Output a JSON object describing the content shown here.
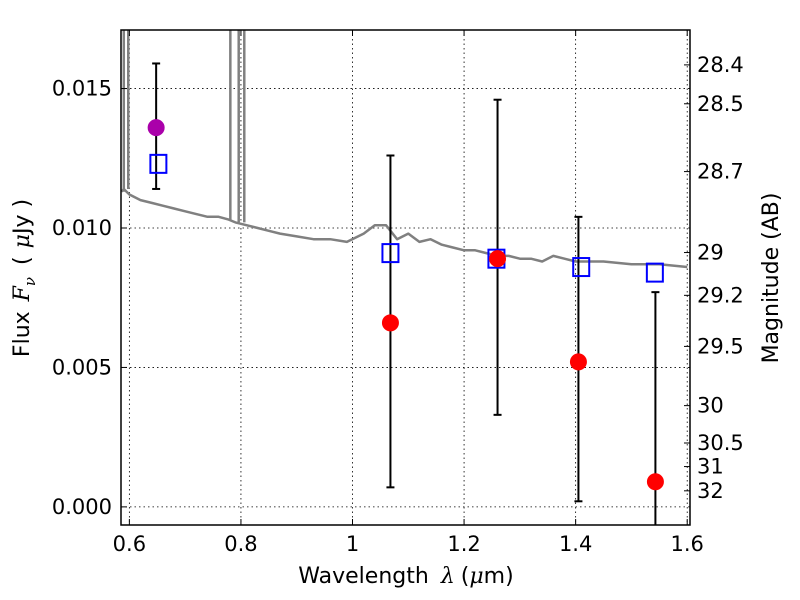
{
  "chart_data": {
    "type": "scatter",
    "x_label": {
      "prefix": "Wavelength",
      "symbol": "λ",
      "unit_open": "(",
      "unit_symbol": "μ",
      "unit_rest": "m)"
    },
    "y_label": {
      "prefix": "Flux",
      "symbol": "F",
      "subscript": "ν",
      "unit_open": "(",
      "unit_symbol": "μ",
      "unit_rest": "Jy )"
    },
    "y2_label": "Magnitude (AB)",
    "xlim": [
      0.585,
      1.605
    ],
    "ylim": [
      -0.00065,
      0.0171
    ],
    "x_ticks": [
      {
        "value": 0.6,
        "label": "0.6"
      },
      {
        "value": 0.8,
        "label": "0.8"
      },
      {
        "value": 1.0,
        "label": "1"
      },
      {
        "value": 1.2,
        "label": "1.2"
      },
      {
        "value": 1.4,
        "label": "1.4"
      },
      {
        "value": 1.6,
        "label": "1.6"
      }
    ],
    "y_ticks": [
      {
        "value": 0.0,
        "label": "0.000"
      },
      {
        "value": 0.005,
        "label": "0.005"
      },
      {
        "value": 0.01,
        "label": "0.010"
      },
      {
        "value": 0.015,
        "label": "0.015"
      }
    ],
    "mag_ticks": [
      {
        "value": 28.4,
        "label": "28.4"
      },
      {
        "value": 28.5,
        "label": "28.5"
      },
      {
        "value": 28.7,
        "label": "28.7"
      },
      {
        "value": 29,
        "label": "29"
      },
      {
        "value": 29.2,
        "label": "29.2"
      },
      {
        "value": 29.5,
        "label": "29.5"
      },
      {
        "value": 30,
        "label": "30"
      },
      {
        "value": 30.5,
        "label": "30.5"
      },
      {
        "value": 31,
        "label": "31"
      },
      {
        "value": 32,
        "label": "32"
      }
    ],
    "grid": true,
    "series": [
      {
        "kind": "line",
        "color": "#808080",
        "x": [
          0.586,
          0.59,
          0.6,
          0.62,
          0.64,
          0.66,
          0.68,
          0.7,
          0.72,
          0.74,
          0.76,
          0.778,
          0.79,
          0.81,
          0.83,
          0.85,
          0.87,
          0.9,
          0.93,
          0.96,
          0.99,
          1.02,
          1.04,
          1.06,
          1.08,
          1.1,
          1.12,
          1.14,
          1.16,
          1.18,
          1.2,
          1.22,
          1.24,
          1.26,
          1.28,
          1.3,
          1.32,
          1.34,
          1.36,
          1.38,
          1.4,
          1.45,
          1.5,
          1.55,
          1.6
        ],
        "y": [
          0.0113,
          0.0114,
          0.0112,
          0.011,
          0.0109,
          0.0108,
          0.0107,
          0.0106,
          0.0105,
          0.0104,
          0.0104,
          0.0103,
          0.0102,
          0.0101,
          0.01,
          0.0099,
          0.0098,
          0.0097,
          0.0096,
          0.0096,
          0.0095,
          0.0098,
          0.0101,
          0.0101,
          0.0096,
          0.0098,
          0.0095,
          0.0096,
          0.0094,
          0.0093,
          0.0092,
          0.0092,
          0.0091,
          0.009,
          0.009,
          0.0089,
          0.0089,
          0.0088,
          0.009,
          0.0089,
          0.0088,
          0.0088,
          0.0087,
          0.0087,
          0.0086
        ],
        "spikes": [
          {
            "x": 0.59,
            "top": 0.0175
          },
          {
            "x": 0.598,
            "top": 0.0175
          },
          {
            "x": 0.781,
            "top": 0.0175
          },
          {
            "x": 0.796,
            "top": 0.0175
          },
          {
            "x": 0.806,
            "top": 0.0175
          }
        ]
      },
      {
        "kind": "points",
        "marker": "open-square",
        "color": "#0000ff",
        "x": [
          0.652,
          1.068,
          1.258,
          1.41,
          1.542
        ],
        "y": [
          0.0123,
          0.0091,
          0.0089,
          0.0086,
          0.0084
        ]
      },
      {
        "kind": "points",
        "marker": "filled-circle",
        "color": "#ff0000",
        "x": [
          1.068,
          1.26,
          1.405,
          1.543
        ],
        "y": [
          0.0066,
          0.0089,
          0.0052,
          0.0009
        ],
        "err_low": [
          0.0007,
          0.0033,
          0.0002,
          -0.0008
        ],
        "err_high": [
          0.0126,
          0.0146,
          0.0104,
          0.0077
        ]
      },
      {
        "kind": "points",
        "marker": "filled-circle",
        "color": "#aa00aa",
        "x": [
          0.648
        ],
        "y": [
          0.0136
        ],
        "err_low": [
          0.0114
        ],
        "err_high": [
          0.0159
        ]
      }
    ]
  }
}
